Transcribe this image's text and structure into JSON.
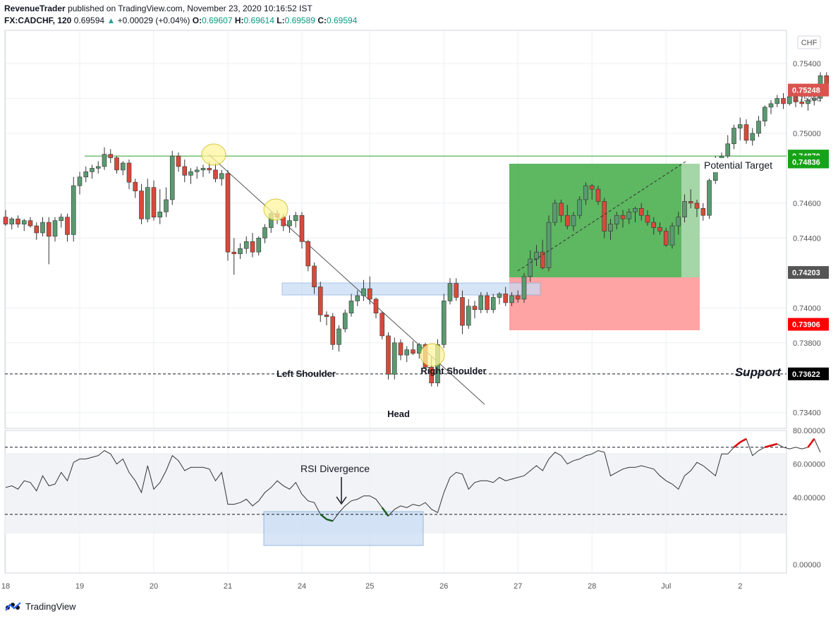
{
  "header": {
    "publisher": "RevenueTrader",
    "published_text": "published on TradingView.com, November 23, 2020 10:16:52 IST",
    "symbol": "FX:CADCHF, 120",
    "last": "0.69594",
    "change": "+0.00029 (+0.04%)",
    "o_label": "O:",
    "o": "0.69607",
    "h_label": "H:",
    "h": "0.69614",
    "l_label": "L:",
    "l": "0.69589",
    "c_label": "C:",
    "c": "0.69594"
  },
  "currency": "CHF",
  "annotations": {
    "left_shoulder": "Left Shoulder",
    "head": "Head",
    "right_shoulder": "Right Shoulder",
    "support": "Support",
    "potential_target": "Potential Target",
    "rsi_divergence": "RSI Divergence"
  },
  "badges": [
    {
      "text": "0.75248",
      "price": 0.75248,
      "color": "#d9534f"
    },
    {
      "text": "0.74870",
      "price": 0.7487,
      "color": "#17a317"
    },
    {
      "text": "0.74836",
      "price": 0.74836,
      "color": "#17a317"
    },
    {
      "text": "0.74203",
      "price": 0.74203,
      "color": "#555555"
    },
    {
      "text": "0.73906",
      "price": 0.73906,
      "color": "#ff0000"
    },
    {
      "text": "0.73622",
      "price": 0.73622,
      "color": "#000000"
    }
  ],
  "footer": {
    "brand": "TradingView"
  },
  "colors": {
    "up": "#5a9a70",
    "down": "#d9493b",
    "target_zone": "#4caf50",
    "stop_zone": "#ff8a8a",
    "neckline_zone": "#c7dbf5",
    "highlight": "#fff59d"
  },
  "chart_data": [
    {
      "type": "candlestick",
      "title": "FX:CADCHF, 120",
      "ylim": [
        0.7331,
        0.7559
      ],
      "yticks": [
        "0.75400",
        "0.75200",
        "0.75000",
        "0.74600",
        "0.74400",
        "0.74000",
        "0.73800",
        "0.73400"
      ],
      "xtick_labels": [
        {
          "label": "18",
          "bar": 0
        },
        {
          "label": "19",
          "bar": 12
        },
        {
          "label": "20",
          "bar": 24
        },
        {
          "label": "21",
          "bar": 36
        },
        {
          "label": "24",
          "bar": 48
        },
        {
          "label": "25",
          "bar": 59
        },
        {
          "label": "26",
          "bar": 71
        },
        {
          "label": "27",
          "bar": 83
        },
        {
          "label": "28",
          "bar": 95
        },
        {
          "label": "Jul",
          "bar": 107
        },
        {
          "label": "2",
          "bar": 119
        }
      ],
      "ohlc": [
        [
          0.7452,
          0.7456,
          0.7447,
          0.7448
        ],
        [
          0.7448,
          0.7452,
          0.7445,
          0.7451
        ],
        [
          0.7451,
          0.7453,
          0.7446,
          0.7448
        ],
        [
          0.7448,
          0.7451,
          0.7444,
          0.745
        ],
        [
          0.745,
          0.7452,
          0.7446,
          0.7447
        ],
        [
          0.7447,
          0.7449,
          0.7439,
          0.7443
        ],
        [
          0.7443,
          0.7452,
          0.7441,
          0.7449
        ],
        [
          0.7449,
          0.7452,
          0.7425,
          0.7441
        ],
        [
          0.7441,
          0.7452,
          0.7438,
          0.745
        ],
        [
          0.745,
          0.7454,
          0.7446,
          0.7452
        ],
        [
          0.7452,
          0.7454,
          0.7438,
          0.7442
        ],
        [
          0.7442,
          0.7475,
          0.7438,
          0.747
        ],
        [
          0.747,
          0.7478,
          0.7465,
          0.7475
        ],
        [
          0.7475,
          0.7481,
          0.7472,
          0.7478
        ],
        [
          0.7478,
          0.7482,
          0.7474,
          0.748
        ],
        [
          0.748,
          0.7484,
          0.7477,
          0.7481
        ],
        [
          0.7481,
          0.7492,
          0.7479,
          0.7488
        ],
        [
          0.7488,
          0.7491,
          0.7483,
          0.7486
        ],
        [
          0.7486,
          0.7487,
          0.7477,
          0.7479
        ],
        [
          0.7479,
          0.7484,
          0.7476,
          0.7483
        ],
        [
          0.7483,
          0.7485,
          0.7468,
          0.7472
        ],
        [
          0.7472,
          0.7474,
          0.7463,
          0.7467
        ],
        [
          0.7467,
          0.7471,
          0.7448,
          0.7451
        ],
        [
          0.7451,
          0.7474,
          0.7449,
          0.7469
        ],
        [
          0.7469,
          0.7473,
          0.745,
          0.7452
        ],
        [
          0.7452,
          0.7468,
          0.7448,
          0.7455
        ],
        [
          0.7455,
          0.7469,
          0.7452,
          0.7462
        ],
        [
          0.7462,
          0.749,
          0.7459,
          0.7487
        ],
        [
          0.7487,
          0.7489,
          0.7478,
          0.7481
        ],
        [
          0.7481,
          0.7485,
          0.7472,
          0.7476
        ],
        [
          0.7476,
          0.748,
          0.7471,
          0.7478
        ],
        [
          0.7478,
          0.7481,
          0.7474,
          0.7479
        ],
        [
          0.7479,
          0.7482,
          0.7475,
          0.748
        ],
        [
          0.748,
          0.7484,
          0.7477,
          0.7479
        ],
        [
          0.7479,
          0.7483,
          0.7472,
          0.7474
        ],
        [
          0.7474,
          0.7479,
          0.747,
          0.7477
        ],
        [
          0.7477,
          0.7479,
          0.7427,
          0.7432
        ],
        [
          0.7432,
          0.744,
          0.7419,
          0.7431
        ],
        [
          0.7431,
          0.7437,
          0.7428,
          0.7434
        ],
        [
          0.7434,
          0.7441,
          0.7431,
          0.7438
        ],
        [
          0.7438,
          0.7443,
          0.7429,
          0.7432
        ],
        [
          0.7432,
          0.7441,
          0.743,
          0.744
        ],
        [
          0.744,
          0.7448,
          0.7437,
          0.7446
        ],
        [
          0.7446,
          0.7455,
          0.7443,
          0.7454
        ],
        [
          0.7454,
          0.7456,
          0.7448,
          0.7452
        ],
        [
          0.7452,
          0.7454,
          0.7444,
          0.7447
        ],
        [
          0.7447,
          0.7453,
          0.7443,
          0.745
        ],
        [
          0.745,
          0.7455,
          0.7446,
          0.7453
        ],
        [
          0.7453,
          0.7455,
          0.7434,
          0.7438
        ],
        [
          0.7438,
          0.7439,
          0.7421,
          0.7424
        ],
        [
          0.7424,
          0.7426,
          0.7408,
          0.7412
        ],
        [
          0.7412,
          0.7415,
          0.7392,
          0.7396
        ],
        [
          0.7396,
          0.7398,
          0.739,
          0.7395
        ],
        [
          0.7395,
          0.7397,
          0.7376,
          0.7379
        ],
        [
          0.7379,
          0.739,
          0.7375,
          0.7388
        ],
        [
          0.7388,
          0.7399,
          0.7386,
          0.7397
        ],
        [
          0.7397,
          0.7408,
          0.7395,
          0.7404
        ],
        [
          0.7404,
          0.741,
          0.7401,
          0.7407
        ],
        [
          0.7407,
          0.7416,
          0.7404,
          0.7411
        ],
        [
          0.7411,
          0.7418,
          0.7402,
          0.7405
        ],
        [
          0.7405,
          0.7406,
          0.7394,
          0.7397
        ],
        [
          0.7397,
          0.7398,
          0.7382,
          0.7384
        ],
        [
          0.7384,
          0.7386,
          0.7359,
          0.7362
        ],
        [
          0.7362,
          0.7383,
          0.7359,
          0.738
        ],
        [
          0.738,
          0.7382,
          0.737,
          0.7373
        ],
        [
          0.7373,
          0.7378,
          0.7369,
          0.7376
        ],
        [
          0.7376,
          0.7381,
          0.7373,
          0.7374
        ],
        [
          0.7374,
          0.738,
          0.7371,
          0.7379
        ],
        [
          0.7379,
          0.738,
          0.7365,
          0.7366
        ],
        [
          0.7366,
          0.7372,
          0.7355,
          0.7357
        ],
        [
          0.7357,
          0.7382,
          0.7355,
          0.7379
        ],
        [
          0.7379,
          0.7408,
          0.7377,
          0.7404
        ],
        [
          0.7404,
          0.7417,
          0.7402,
          0.7414
        ],
        [
          0.7414,
          0.7417,
          0.7404,
          0.7406
        ],
        [
          0.7406,
          0.741,
          0.7385,
          0.739
        ],
        [
          0.739,
          0.7405,
          0.7388,
          0.7401
        ],
        [
          0.7401,
          0.7404,
          0.7394,
          0.7399
        ],
        [
          0.7399,
          0.7409,
          0.7397,
          0.7407
        ],
        [
          0.7407,
          0.7409,
          0.7397,
          0.7399
        ],
        [
          0.7399,
          0.7408,
          0.7397,
          0.7406
        ],
        [
          0.7406,
          0.7409,
          0.7402,
          0.7408
        ],
        [
          0.7408,
          0.7412,
          0.7401,
          0.7403
        ],
        [
          0.7403,
          0.7409,
          0.7401,
          0.7407
        ],
        [
          0.7407,
          0.741,
          0.7403,
          0.7405
        ],
        [
          0.7405,
          0.742,
          0.7403,
          0.7418
        ],
        [
          0.7418,
          0.7433,
          0.7415,
          0.7428
        ],
        [
          0.7428,
          0.7436,
          0.7424,
          0.7432
        ],
        [
          0.7432,
          0.7439,
          0.7422,
          0.7423
        ],
        [
          0.7423,
          0.7453,
          0.7421,
          0.7449
        ],
        [
          0.7449,
          0.7462,
          0.7447,
          0.746
        ],
        [
          0.746,
          0.7462,
          0.7449,
          0.7453
        ],
        [
          0.7453,
          0.7459,
          0.7445,
          0.7447
        ],
        [
          0.7447,
          0.7455,
          0.7444,
          0.7453
        ],
        [
          0.7453,
          0.7464,
          0.7451,
          0.7462
        ],
        [
          0.7462,
          0.7472,
          0.7459,
          0.747
        ],
        [
          0.747,
          0.7471,
          0.7462,
          0.7468
        ],
        [
          0.7468,
          0.747,
          0.7459,
          0.7461
        ],
        [
          0.7461,
          0.7463,
          0.744,
          0.7444
        ],
        [
          0.7444,
          0.7451,
          0.7439,
          0.7448
        ],
        [
          0.7448,
          0.7455,
          0.7445,
          0.7453
        ],
        [
          0.7453,
          0.7456,
          0.7446,
          0.7451
        ],
        [
          0.7451,
          0.7457,
          0.7448,
          0.7455
        ],
        [
          0.7455,
          0.7458,
          0.7449,
          0.7457
        ],
        [
          0.7457,
          0.746,
          0.745,
          0.7453
        ],
        [
          0.7453,
          0.7456,
          0.7447,
          0.7449
        ],
        [
          0.7449,
          0.7452,
          0.7442,
          0.7446
        ],
        [
          0.7446,
          0.7449,
          0.7442,
          0.7444
        ],
        [
          0.7444,
          0.7446,
          0.7435,
          0.7436
        ],
        [
          0.7436,
          0.7449,
          0.7434,
          0.7447
        ],
        [
          0.7447,
          0.7455,
          0.7442,
          0.7452
        ],
        [
          0.7452,
          0.7465,
          0.7449,
          0.7461
        ],
        [
          0.7461,
          0.7468,
          0.7457,
          0.746
        ],
        [
          0.746,
          0.7462,
          0.7452,
          0.7457
        ],
        [
          0.7457,
          0.746,
          0.745,
          0.7453
        ],
        [
          0.7453,
          0.7474,
          0.7451,
          0.7473
        ],
        [
          0.7473,
          0.7487,
          0.7471,
          0.7481
        ],
        [
          0.7481,
          0.7489,
          0.7478,
          0.7487
        ],
        [
          0.7487,
          0.7499,
          0.7485,
          0.7494
        ],
        [
          0.7494,
          0.7505,
          0.7491,
          0.7503
        ],
        [
          0.7503,
          0.7509,
          0.7496,
          0.7505
        ],
        [
          0.7505,
          0.7508,
          0.7494,
          0.7496
        ],
        [
          0.7496,
          0.7503,
          0.7493,
          0.75
        ],
        [
          0.75,
          0.751,
          0.7498,
          0.7507
        ],
        [
          0.7507,
          0.7516,
          0.7504,
          0.7515
        ],
        [
          0.7515,
          0.7519,
          0.7511,
          0.7517
        ],
        [
          0.7517,
          0.7522,
          0.7515,
          0.752
        ],
        [
          0.752,
          0.7523,
          0.7514,
          0.7517
        ],
        [
          0.7517,
          0.7522,
          0.7516,
          0.7521
        ],
        [
          0.7521,
          0.7523,
          0.7515,
          0.7518
        ],
        [
          0.7518,
          0.7521,
          0.7515,
          0.7517
        ],
        [
          0.7517,
          0.752,
          0.7513,
          0.7519
        ],
        [
          0.7519,
          0.7522,
          0.7516,
          0.752
        ],
        [
          0.752,
          0.7535,
          0.7518,
          0.7533
        ],
        [
          0.7533,
          0.7535,
          0.7522,
          0.7525
        ]
      ],
      "levels": {
        "resistance": 0.7487,
        "support": 0.73622,
        "entry": 0.74203,
        "target": 0.74836,
        "stop": 0.73906
      }
    },
    {
      "type": "line",
      "title": "RSI",
      "ylim": [
        -0.05,
        0.8
      ],
      "yticks": [
        "80.00000",
        "60.00000",
        "40.00000",
        "0.00000"
      ],
      "bands": [
        0.7,
        0.3
      ],
      "values": [
        0.46,
        0.47,
        0.45,
        0.5,
        0.49,
        0.44,
        0.53,
        0.47,
        0.48,
        0.55,
        0.5,
        0.61,
        0.63,
        0.63,
        0.64,
        0.65,
        0.68,
        0.66,
        0.6,
        0.63,
        0.55,
        0.5,
        0.43,
        0.59,
        0.45,
        0.49,
        0.56,
        0.65,
        0.62,
        0.56,
        0.58,
        0.58,
        0.58,
        0.57,
        0.5,
        0.55,
        0.36,
        0.36,
        0.37,
        0.39,
        0.35,
        0.38,
        0.43,
        0.46,
        0.5,
        0.47,
        0.45,
        0.49,
        0.42,
        0.38,
        0.37,
        0.3,
        0.27,
        0.26,
        0.31,
        0.35,
        0.38,
        0.39,
        0.41,
        0.41,
        0.39,
        0.34,
        0.29,
        0.33,
        0.35,
        0.34,
        0.36,
        0.35,
        0.37,
        0.33,
        0.31,
        0.43,
        0.52,
        0.55,
        0.54,
        0.45,
        0.49,
        0.5,
        0.5,
        0.49,
        0.52,
        0.5,
        0.51,
        0.52,
        0.53,
        0.56,
        0.59,
        0.56,
        0.63,
        0.67,
        0.65,
        0.6,
        0.62,
        0.63,
        0.65,
        0.66,
        0.68,
        0.67,
        0.53,
        0.55,
        0.57,
        0.58,
        0.58,
        0.59,
        0.58,
        0.57,
        0.53,
        0.5,
        0.48,
        0.45,
        0.53,
        0.56,
        0.61,
        0.59,
        0.56,
        0.53,
        0.66,
        0.66,
        0.7,
        0.73,
        0.75,
        0.65,
        0.68,
        0.7,
        0.71,
        0.72,
        0.7,
        0.69,
        0.7,
        0.69,
        0.7,
        0.75,
        0.67
      ]
    }
  ]
}
